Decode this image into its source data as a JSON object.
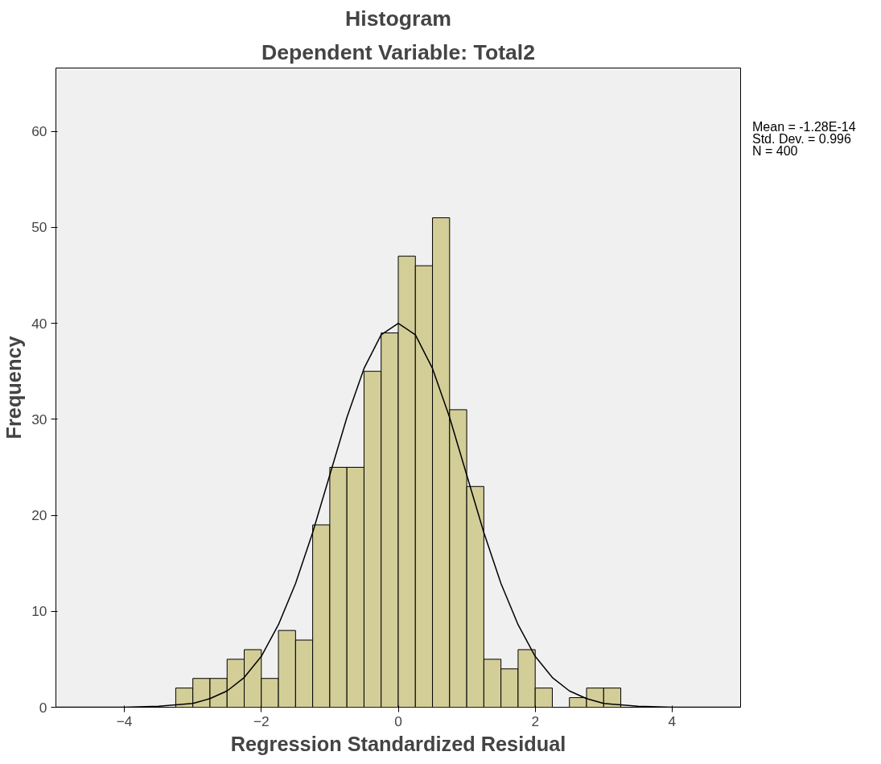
{
  "chart_data": {
    "type": "histogram",
    "title": "Histogram",
    "subtitle": "Dependent Variable: Total2",
    "xlabel": "Regression Standardized Residual",
    "ylabel": "Frequency",
    "bins": [
      -3.25,
      -3.0,
      -2.75,
      -2.5,
      -2.25,
      -2.0,
      -1.75,
      -1.5,
      -1.25,
      -1.0,
      -0.75,
      -0.5,
      -0.25,
      0.0,
      0.25,
      0.5,
      0.75,
      1.0,
      1.25,
      1.5,
      1.75,
      2.0,
      2.25,
      2.5,
      2.75,
      3.0,
      3.25
    ],
    "values": [
      2,
      3,
      3,
      5,
      6,
      3,
      8,
      7,
      19,
      25,
      25,
      35,
      39,
      47,
      46,
      51,
      31,
      23,
      5,
      4,
      6,
      2,
      0,
      1,
      2,
      2
    ],
    "color": "#d3ce97",
    "series": [
      {
        "type": "line",
        "color": "#000000",
        "x": [
          -5,
          -4.5,
          -4,
          -3.5,
          -3,
          -2.75,
          -2.5,
          -2.25,
          -2,
          -1.75,
          -1.5,
          -1.25,
          -1,
          -0.75,
          -0.5,
          -0.25,
          0,
          0.25,
          0.5,
          0.75,
          1,
          1.25,
          1.5,
          1.75,
          2,
          2.25,
          2.5,
          2.75,
          3,
          3.5,
          4,
          4.5,
          5
        ],
        "values": [
          0,
          0,
          0,
          0.1,
          0.4,
          0.9,
          1.7,
          3.1,
          5.3,
          8.6,
          12.9,
          18.2,
          24.2,
          30.2,
          35.3,
          38.8,
          40.0,
          38.8,
          35.3,
          30.2,
          24.2,
          18.2,
          12.9,
          8.6,
          5.3,
          3.1,
          1.7,
          0.9,
          0.4,
          0.1,
          0,
          0,
          0
        ]
      }
    ],
    "xlim": [
      -5,
      5
    ],
    "ylim": [
      0,
      66.6
    ],
    "xticks": [
      -4,
      -2,
      0,
      2,
      4
    ],
    "yticks": [
      0,
      10,
      20,
      30,
      40,
      50,
      60
    ],
    "grid": false,
    "annotations": [
      "Mean = -1.28E-14",
      "Std. Dev. = 0.996",
      "N = 400"
    ]
  }
}
